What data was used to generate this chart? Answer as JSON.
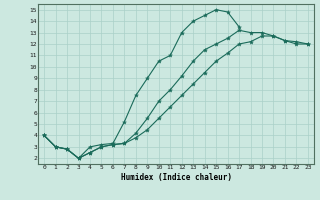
{
  "xlabel": "Humidex (Indice chaleur)",
  "bg_color": "#cce8e0",
  "grid_color": "#aad0c8",
  "line_color": "#1a6b5a",
  "xlim": [
    -0.5,
    23.5
  ],
  "ylim": [
    1.5,
    15.5
  ],
  "xticks": [
    0,
    1,
    2,
    3,
    4,
    5,
    6,
    7,
    8,
    9,
    10,
    11,
    12,
    13,
    14,
    15,
    16,
    17,
    18,
    19,
    20,
    21,
    22,
    23
  ],
  "yticks": [
    2,
    3,
    4,
    5,
    6,
    7,
    8,
    9,
    10,
    11,
    12,
    13,
    14,
    15
  ],
  "line1_x": [
    0,
    1,
    2,
    3,
    4,
    5,
    6,
    7,
    8,
    9,
    10,
    11,
    12,
    13,
    14,
    15,
    16,
    17
  ],
  "line1_y": [
    4,
    3,
    2.8,
    2,
    3,
    3.2,
    3.3,
    5.2,
    7.5,
    9.0,
    10.5,
    11.0,
    13.0,
    14.0,
    14.5,
    15.0,
    14.8,
    13.5
  ],
  "line2_x": [
    0,
    1,
    2,
    3,
    4,
    5,
    6,
    7,
    8,
    9,
    10,
    11,
    12,
    13,
    14,
    15,
    16,
    17,
    18,
    19,
    20,
    21,
    22,
    23
  ],
  "line2_y": [
    4,
    3,
    2.8,
    2,
    2.5,
    3.0,
    3.2,
    3.3,
    3.8,
    4.5,
    5.5,
    6.5,
    7.5,
    8.5,
    9.5,
    10.5,
    11.2,
    12.0,
    12.2,
    12.7,
    12.7,
    12.3,
    12.0,
    12.0
  ],
  "line3_x": [
    0,
    1,
    2,
    3,
    4,
    5,
    6,
    7,
    8,
    9,
    10,
    11,
    12,
    13,
    14,
    15,
    16,
    17,
    18,
    19,
    20,
    21,
    22,
    23
  ],
  "line3_y": [
    4,
    3,
    2.8,
    2,
    2.5,
    3.0,
    3.2,
    3.3,
    4.2,
    5.5,
    7.0,
    8.0,
    9.2,
    10.5,
    11.5,
    12.0,
    12.5,
    13.2,
    13.0,
    13.0,
    12.7,
    12.3,
    12.2,
    12.0
  ]
}
